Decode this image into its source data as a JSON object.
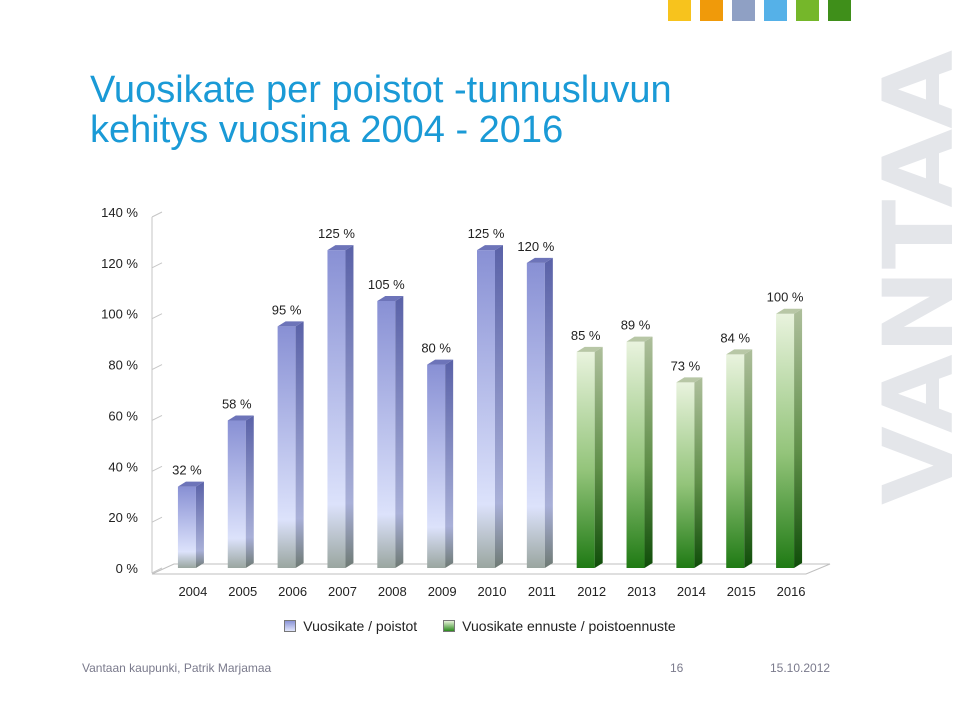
{
  "slide": {
    "title_lines": [
      "Vuosikate per poistot -tunnusluvun",
      "kehitys vuosina 2004 - 2016"
    ],
    "watermark_text": "VANTAA",
    "deco_colors": [
      "#f7c31d",
      "#f09a0a",
      "#8fa0c4",
      "#55b1e8",
      "#75b72a",
      "#3f8f1a"
    ],
    "footer": {
      "author": "Vantaan kaupunki, Patrik Marjamaa",
      "page_number": "16",
      "date": "15.10.2012"
    }
  },
  "chart_data": {
    "type": "bar",
    "categories": [
      "2004",
      "2005",
      "2006",
      "2007",
      "2008",
      "2009",
      "2010",
      "2011",
      "2012",
      "2013",
      "2014",
      "2015",
      "2016"
    ],
    "series": [
      {
        "name": "Vuosikate / poistot",
        "color": "#8e97d8",
        "values": [
          32,
          58,
          95,
          125,
          105,
          80,
          125,
          120,
          null,
          null,
          null,
          null,
          null
        ]
      },
      {
        "name": "Vuosikate ennuste / poistoennuste",
        "color": "#2e8a1c",
        "values": [
          null,
          null,
          null,
          null,
          null,
          null,
          null,
          null,
          85,
          89,
          73,
          84,
          100
        ]
      }
    ],
    "data_labels": [
      "32 %",
      "58 %",
      "95 %",
      "125 %",
      "105 %",
      "80 %",
      "125 %",
      "120 %",
      "85 %",
      "89 %",
      "73 %",
      "84 %",
      "100 %"
    ],
    "ylim": [
      0,
      140
    ],
    "yticks": [
      0,
      20,
      40,
      60,
      80,
      100,
      120,
      140
    ],
    "ytick_labels": [
      "0 %",
      "20 %",
      "40 %",
      "60 %",
      "80 %",
      "100 %",
      "120 %",
      "140 %"
    ],
    "grid": false,
    "legend_position": "bottom",
    "three_d": true
  }
}
